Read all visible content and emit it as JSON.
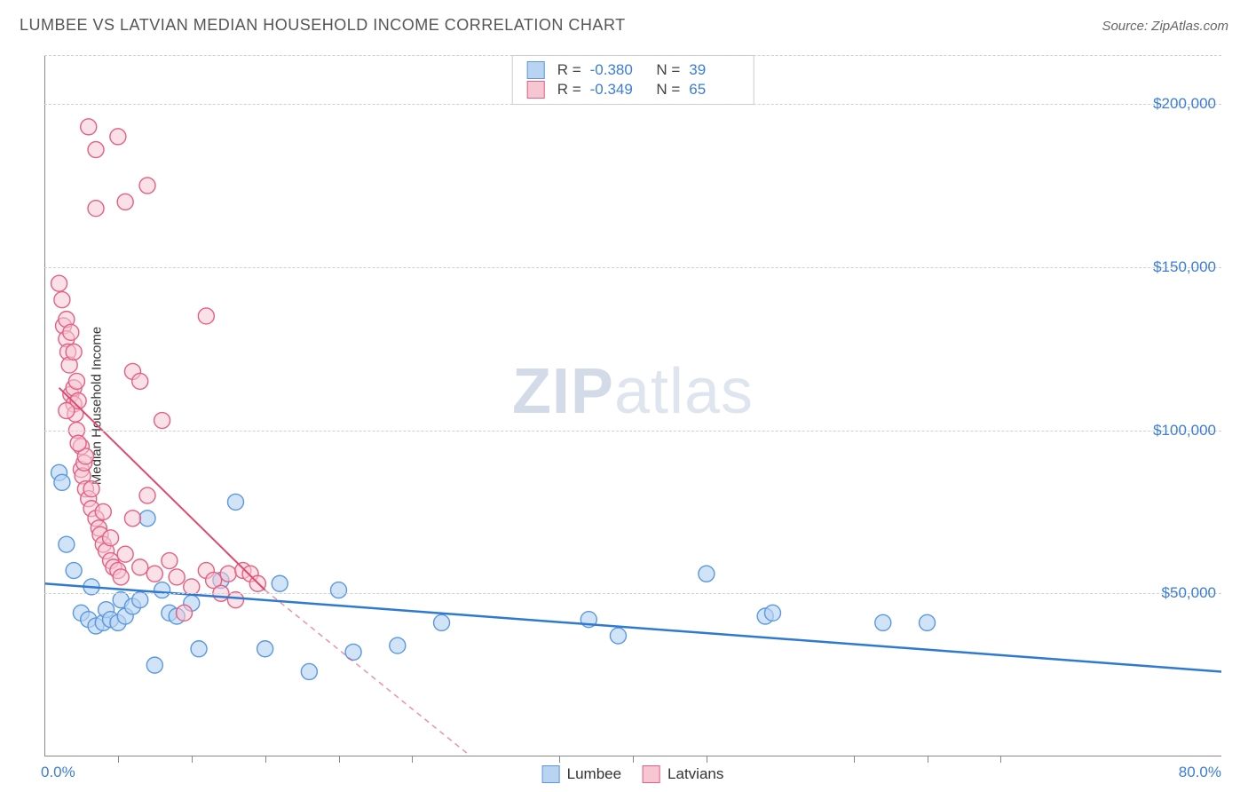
{
  "title": "LUMBEE VS LATVIAN MEDIAN HOUSEHOLD INCOME CORRELATION CHART",
  "source": "Source: ZipAtlas.com",
  "y_axis_label": "Median Household Income",
  "watermark_a": "ZIP",
  "watermark_b": "atlas",
  "chart": {
    "type": "scatter",
    "xlim": [
      0,
      80
    ],
    "ylim": [
      0,
      215000
    ],
    "x_ticks_minor": [
      5,
      10,
      15,
      20,
      25,
      35,
      40,
      45,
      55,
      60,
      65
    ],
    "y_gridlines": [
      50000,
      100000,
      150000,
      200000
    ],
    "y_tick_labels": [
      "$50,000",
      "$100,000",
      "$150,000",
      "$200,000"
    ],
    "x_tick_labels": {
      "left": "0.0%",
      "right": "80.0%"
    },
    "background_color": "#ffffff",
    "grid_color": "#d0d0d0",
    "axis_color": "#888888",
    "series": [
      {
        "name": "Lumbee",
        "marker_fill": "#b9d4f1",
        "marker_stroke": "#5a98e0",
        "marker_fill_opacity": 0.65,
        "marker_r": 9,
        "trend_color": "#2f7ad1",
        "trend_width": 2.5,
        "trend_dash": "",
        "R": "-0.380",
        "N": "39",
        "trend": {
          "x1": 0,
          "y1": 53000,
          "x2": 80,
          "y2": 26000
        },
        "points": [
          [
            1.0,
            87000
          ],
          [
            1.2,
            84000
          ],
          [
            1.5,
            65000
          ],
          [
            2.0,
            57000
          ],
          [
            2.5,
            44000
          ],
          [
            3.0,
            42000
          ],
          [
            3.2,
            52000
          ],
          [
            3.5,
            40000
          ],
          [
            4.0,
            41000
          ],
          [
            4.2,
            45000
          ],
          [
            4.5,
            42000
          ],
          [
            5.0,
            41000
          ],
          [
            5.2,
            48000
          ],
          [
            5.5,
            43000
          ],
          [
            6.0,
            46000
          ],
          [
            6.5,
            48000
          ],
          [
            7.0,
            73000
          ],
          [
            7.5,
            28000
          ],
          [
            8.0,
            51000
          ],
          [
            8.5,
            44000
          ],
          [
            9.0,
            43000
          ],
          [
            10.0,
            47000
          ],
          [
            10.5,
            33000
          ],
          [
            12.0,
            54000
          ],
          [
            13.0,
            78000
          ],
          [
            15.0,
            33000
          ],
          [
            16.0,
            53000
          ],
          [
            18.0,
            26000
          ],
          [
            20.0,
            51000
          ],
          [
            21.0,
            32000
          ],
          [
            24.0,
            34000
          ],
          [
            27.0,
            41000
          ],
          [
            37.0,
            42000
          ],
          [
            39.0,
            37000
          ],
          [
            45.0,
            56000
          ],
          [
            49.0,
            43000
          ],
          [
            49.5,
            44000
          ],
          [
            57.0,
            41000
          ],
          [
            60.0,
            41000
          ]
        ]
      },
      {
        "name": "Latvians",
        "marker_fill": "#f6c6d3",
        "marker_stroke": "#e55f82",
        "marker_fill_opacity": 0.55,
        "marker_r": 9,
        "trend_color": "#e0496f",
        "trend_width": 2,
        "trend_dash_ext": "6 5",
        "R": "-0.349",
        "N": "65",
        "trend": {
          "x1": 1,
          "y1": 113000,
          "x2": 15,
          "y2": 51000
        },
        "trend_ext": {
          "x1": 15,
          "y1": 51000,
          "x2": 29,
          "y2": 0
        },
        "points": [
          [
            1.0,
            145000
          ],
          [
            1.2,
            140000
          ],
          [
            1.3,
            132000
          ],
          [
            1.5,
            134000
          ],
          [
            1.5,
            128000
          ],
          [
            1.6,
            124000
          ],
          [
            1.7,
            120000
          ],
          [
            1.8,
            111000
          ],
          [
            1.8,
            130000
          ],
          [
            2.0,
            108000
          ],
          [
            2.0,
            113000
          ],
          [
            2.1,
            105000
          ],
          [
            2.2,
            100000
          ],
          [
            2.2,
            115000
          ],
          [
            2.3,
            109000
          ],
          [
            2.5,
            88000
          ],
          [
            2.5,
            95000
          ],
          [
            2.6,
            86000
          ],
          [
            2.7,
            90000
          ],
          [
            2.8,
            82000
          ],
          [
            2.8,
            92000
          ],
          [
            3.0,
            79000
          ],
          [
            3.0,
            193000
          ],
          [
            3.2,
            76000
          ],
          [
            3.2,
            82000
          ],
          [
            3.5,
            73000
          ],
          [
            3.5,
            186000
          ],
          [
            3.7,
            70000
          ],
          [
            3.8,
            68000
          ],
          [
            4.0,
            65000
          ],
          [
            4.0,
            75000
          ],
          [
            4.2,
            63000
          ],
          [
            4.5,
            60000
          ],
          [
            4.5,
            67000
          ],
          [
            4.7,
            58000
          ],
          [
            5.0,
            57000
          ],
          [
            5.0,
            190000
          ],
          [
            5.2,
            55000
          ],
          [
            5.5,
            170000
          ],
          [
            5.5,
            62000
          ],
          [
            6.0,
            118000
          ],
          [
            6.0,
            73000
          ],
          [
            6.5,
            58000
          ],
          [
            6.5,
            115000
          ],
          [
            7.0,
            80000
          ],
          [
            7.0,
            175000
          ],
          [
            7.5,
            56000
          ],
          [
            8.0,
            103000
          ],
          [
            8.5,
            60000
          ],
          [
            9.0,
            55000
          ],
          [
            9.5,
            44000
          ],
          [
            10.0,
            52000
          ],
          [
            11.0,
            135000
          ],
          [
            11.0,
            57000
          ],
          [
            11.5,
            54000
          ],
          [
            12.0,
            50000
          ],
          [
            12.5,
            56000
          ],
          [
            13.0,
            48000
          ],
          [
            13.5,
            57000
          ],
          [
            14.0,
            56000
          ],
          [
            14.5,
            53000
          ],
          [
            3.5,
            168000
          ],
          [
            2.0,
            124000
          ],
          [
            1.5,
            106000
          ],
          [
            2.3,
            96000
          ]
        ]
      }
    ],
    "legend_bottom": [
      {
        "label": "Lumbee",
        "fill": "#b9d4f1",
        "stroke": "#5a98e0"
      },
      {
        "label": "Latvians",
        "fill": "#f6c6d3",
        "stroke": "#e55f82"
      }
    ]
  },
  "colors": {
    "title": "#555555",
    "source": "#666666",
    "tick_label": "#3b7dd8"
  }
}
